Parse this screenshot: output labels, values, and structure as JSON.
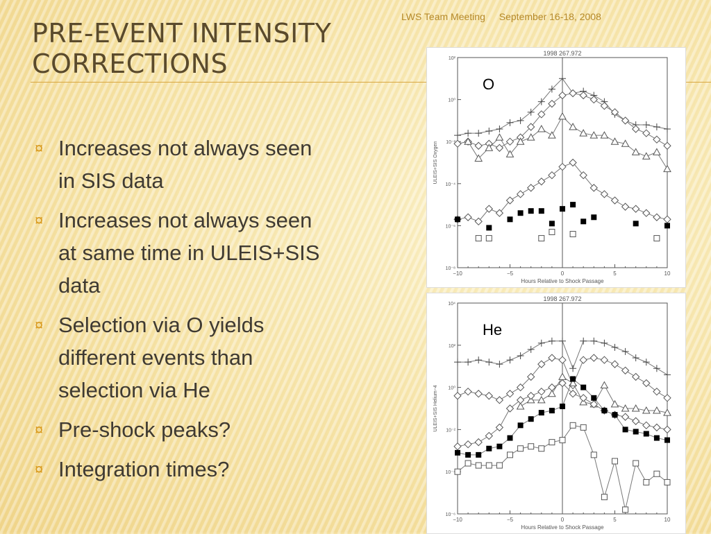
{
  "header": {
    "meeting": "LWS Team Meeting",
    "dates": "September 16-18, 2008"
  },
  "slide": {
    "title": "Pre-Event Intensity Corrections",
    "bullets": [
      "Increases not always seen in SIS data",
      "Increases not always seen at same time in ULEIS+SIS data",
      "Selection via O yields different events than selection via He",
      "Pre-shock peaks?",
      "Integration times?"
    ]
  },
  "chart_data": [
    {
      "type": "scatter",
      "panel_label": "O",
      "title": "1998   267.972",
      "xlabel": "Hours Relative to Shock Passage",
      "ylabel": "ULEIS+SIS Oxygen",
      "xlim": [
        -10,
        10
      ],
      "ylim_log10": [
        -8,
        2
      ],
      "x_ticks": [
        "−10",
        "−5",
        "0",
        "5",
        "10"
      ],
      "y_ticks": [
        "10²",
        "10⁰",
        "10⁻²",
        "10⁻⁴",
        "10⁻⁶",
        "10⁻⁸"
      ],
      "y_tick_log10": [
        2,
        0,
        -2,
        -4,
        -6,
        -8
      ],
      "series": [
        {
          "marker": "plus",
          "connect": true,
          "x": [
            -10,
            -9,
            -8,
            -7,
            -6,
            -5,
            -4,
            -3,
            -2,
            -1,
            0,
            1,
            2,
            3,
            4,
            5,
            6,
            7,
            8,
            9,
            10
          ],
          "y": [
            -1.7,
            -1.6,
            -1.6,
            -1.5,
            -1.4,
            -1.1,
            -1.0,
            -0.6,
            -0.1,
            0.5,
            1.0,
            0.3,
            0.4,
            0.2,
            -0.1,
            -0.7,
            -1.0,
            -1.2,
            -1.2,
            -1.3,
            -1.4
          ]
        },
        {
          "marker": "diamond",
          "connect": true,
          "x": [
            -10,
            -9,
            -8,
            -7,
            -6,
            -5,
            -4,
            -3,
            -2,
            -1,
            0,
            1,
            2,
            3,
            4,
            5,
            6,
            7,
            8,
            9,
            10
          ],
          "y": [
            -2.1,
            -2.0,
            -2.2,
            -2.1,
            -2.3,
            -2.0,
            -1.8,
            -1.3,
            -0.7,
            -0.2,
            0.2,
            0.3,
            0.2,
            0.0,
            -0.3,
            -0.6,
            -1.0,
            -1.4,
            -1.6,
            -1.9,
            -2.2
          ]
        },
        {
          "marker": "triangle",
          "connect": true,
          "x": [
            -9,
            -8,
            -7,
            -6,
            -5,
            -4,
            -3,
            -2,
            -1,
            0,
            1,
            2,
            3,
            4,
            5,
            6,
            7,
            8,
            9,
            10
          ],
          "y": [
            -2.0,
            -2.8,
            -2.3,
            -1.8,
            -2.6,
            -2.0,
            -1.8,
            -1.4,
            -1.7,
            -0.8,
            -1.3,
            -1.6,
            -1.7,
            -1.7,
            -2.0,
            -2.1,
            -2.5,
            -2.7,
            -2.5,
            -3.3
          ]
        },
        {
          "marker": "diamond",
          "connect": true,
          "x": [
            -10,
            -9,
            -8,
            -7,
            -6,
            -5,
            -4,
            -3,
            -2,
            -1,
            0,
            1,
            2,
            3,
            4,
            5,
            6,
            7,
            8,
            9,
            10
          ],
          "y": [
            -5.7,
            -5.6,
            -5.8,
            -5.2,
            -5.4,
            -4.8,
            -4.5,
            -4.2,
            -3.9,
            -3.6,
            -3.2,
            -3.0,
            -3.6,
            -4.2,
            -4.5,
            -4.8,
            -5.1,
            -5.2,
            -5.4,
            -5.6,
            -5.7
          ]
        },
        {
          "marker": "filled-square",
          "connect": false,
          "x": [
            -10,
            -7,
            -5,
            -4,
            -3,
            -2,
            -1,
            0,
            1,
            2,
            3,
            7,
            10
          ],
          "y": [
            -5.7,
            -6.1,
            -5.7,
            -5.4,
            -5.3,
            -5.3,
            -5.9,
            -5.2,
            -5.0,
            -5.8,
            -5.6,
            -5.9,
            -6.0
          ]
        },
        {
          "marker": "square",
          "connect": false,
          "x": [
            -8,
            -7,
            -2,
            -1,
            1,
            9
          ],
          "y": [
            -6.6,
            -6.6,
            -6.6,
            -6.3,
            -6.4,
            -6.6
          ]
        }
      ]
    },
    {
      "type": "scatter",
      "panel_label": "He",
      "title": "1998   267.972",
      "xlabel": "Hours Relative to Shock Passage",
      "ylabel": "ULEIS+SIS Helium−4",
      "xlim": [
        -10,
        10
      ],
      "ylim_log10": [
        -6,
        4
      ],
      "x_ticks": [
        "−10",
        "−5",
        "0",
        "5",
        "10"
      ],
      "y_ticks": [
        "10⁴",
        "10²",
        "10⁰",
        "10⁻²",
        "10⁻⁴",
        "10⁻⁶"
      ],
      "y_tick_log10": [
        4,
        2,
        0,
        -2,
        -4,
        -6
      ],
      "series": [
        {
          "marker": "plus",
          "connect": true,
          "x": [
            -10,
            -9,
            -8,
            -7,
            -6,
            -5,
            -4,
            -3,
            -2,
            -1,
            0,
            1,
            2,
            3,
            4,
            5,
            6,
            7,
            8,
            9,
            10
          ],
          "y": [
            1.2,
            1.2,
            1.3,
            1.2,
            1.1,
            1.3,
            1.5,
            1.8,
            2.1,
            2.2,
            2.2,
            0.9,
            2.2,
            2.2,
            2.1,
            1.9,
            1.7,
            1.4,
            1.2,
            0.9,
            0.6
          ]
        },
        {
          "marker": "diamond",
          "connect": true,
          "x": [
            -10,
            -9,
            -8,
            -7,
            -6,
            -5,
            -4,
            -3,
            -2,
            -1,
            0,
            1,
            2,
            3,
            4,
            5,
            6,
            7,
            8,
            9,
            10
          ],
          "y": [
            -0.4,
            -0.2,
            -0.3,
            -0.4,
            -0.6,
            -0.3,
            0.0,
            0.5,
            1.1,
            1.4,
            1.3,
            0.1,
            1.3,
            1.4,
            1.3,
            1.1,
            0.8,
            0.5,
            0.2,
            -0.2,
            -0.5
          ]
        },
        {
          "marker": "triangle",
          "connect": true,
          "x": [
            -4,
            -3,
            -2,
            -1,
            0,
            1,
            2,
            3,
            4,
            5,
            6,
            7,
            8,
            9,
            10
          ],
          "y": [
            -0.9,
            -0.6,
            -0.6,
            -0.3,
            0.5,
            0.2,
            -0.7,
            -0.8,
            0.1,
            -0.8,
            -1.0,
            -1.0,
            -1.1,
            -1.1,
            -1.2
          ]
        },
        {
          "marker": "diamond",
          "connect": true,
          "x": [
            -10,
            -9,
            -8,
            -7,
            -6,
            -5,
            -4,
            -3,
            -2,
            -1,
            0,
            1,
            2,
            3,
            4,
            5,
            6,
            7,
            8,
            9,
            10
          ],
          "y": [
            -2.8,
            -2.7,
            -2.6,
            -2.3,
            -1.9,
            -1.0,
            -0.6,
            -0.4,
            -0.2,
            0.0,
            0.2,
            -0.3,
            -0.5,
            -0.8,
            -1.1,
            -1.3,
            -1.4,
            -1.6,
            -1.8,
            -1.9,
            -2.0
          ]
        },
        {
          "marker": "filled-square",
          "connect": true,
          "x": [
            -10,
            -9,
            -8,
            -7,
            -6,
            -5,
            -4,
            -3,
            -2,
            -1,
            0,
            1,
            2,
            3,
            4,
            5,
            6,
            7,
            8,
            9,
            10
          ],
          "y": [
            -3.1,
            -3.2,
            -3.2,
            -2.9,
            -2.8,
            -2.4,
            -1.8,
            -1.5,
            -1.2,
            -1.1,
            -0.9,
            0.4,
            0.0,
            -0.5,
            -1.1,
            -1.3,
            -2.0,
            -2.1,
            -2.2,
            -2.4,
            -2.5
          ]
        },
        {
          "marker": "square",
          "connect": true,
          "x": [
            -10,
            -9,
            -8,
            -7,
            -6,
            -5,
            -4,
            -3,
            -2,
            -1,
            0,
            1,
            2,
            3,
            4,
            5,
            6,
            7,
            8,
            9,
            10
          ],
          "y": [
            -4.0,
            -3.6,
            -3.7,
            -3.7,
            -3.7,
            -3.2,
            -2.9,
            -2.8,
            -2.9,
            -2.6,
            -2.5,
            -1.8,
            -1.9,
            -3.2,
            -5.2,
            -3.5,
            -5.8,
            -3.6,
            -4.5,
            -4.1,
            -4.5
          ]
        }
      ]
    }
  ]
}
